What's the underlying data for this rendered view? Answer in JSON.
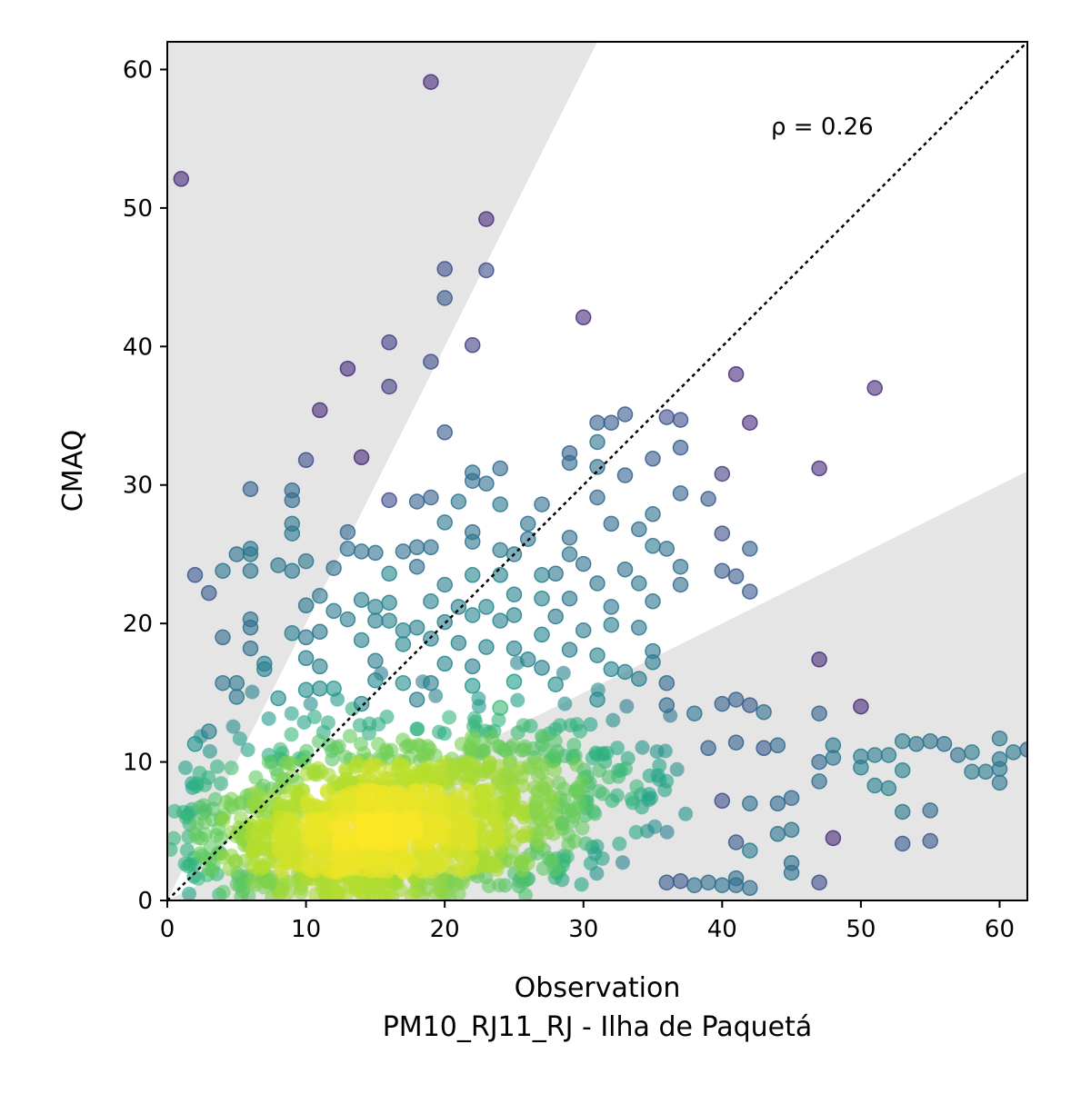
{
  "chart_data": {
    "type": "scatter",
    "xlabel": "Observation",
    "xlabel_line2": "PM10_RJ11_RJ - Ilha de Paquetá",
    "ylabel": "CMAQ",
    "xlim": [
      0,
      62
    ],
    "ylim": [
      0,
      62
    ],
    "xticks": [
      0,
      10,
      20,
      30,
      40,
      50,
      60
    ],
    "yticks": [
      0,
      10,
      20,
      30,
      40,
      50,
      60
    ],
    "grid": false,
    "annotation": "ρ = 0.26",
    "reference_line": "1:1",
    "shaded_band_slopes": [
      0.5,
      2
    ],
    "colormap": "viridis",
    "alpha": 0.6,
    "points": [
      [
        19,
        59.1
      ],
      [
        1,
        52.1
      ],
      [
        23,
        49.2
      ],
      [
        20,
        45.6
      ],
      [
        23,
        45.5
      ],
      [
        20,
        43.5
      ],
      [
        30,
        42.1
      ],
      [
        22,
        40.1
      ],
      [
        16,
        40.3
      ],
      [
        19,
        38.9
      ],
      [
        13,
        38.4
      ],
      [
        41,
        38.0
      ],
      [
        16,
        37.1
      ],
      [
        51,
        37.0
      ],
      [
        11,
        35.4
      ],
      [
        33,
        35.1
      ],
      [
        36,
        34.9
      ],
      [
        37,
        34.7
      ],
      [
        31,
        34.5
      ],
      [
        42,
        34.5
      ],
      [
        32,
        34.5
      ],
      [
        31,
        33.1
      ],
      [
        20,
        33.8
      ],
      [
        29,
        32.3
      ],
      [
        37,
        32.7
      ],
      [
        29,
        31.6
      ],
      [
        14,
        32.0
      ],
      [
        10,
        31.8
      ],
      [
        35,
        31.9
      ],
      [
        24,
        31.2
      ],
      [
        31,
        31.3
      ],
      [
        33,
        30.7
      ],
      [
        47,
        31.2
      ],
      [
        22,
        30.9
      ],
      [
        40,
        30.8
      ],
      [
        22,
        30.3
      ],
      [
        23,
        30.1
      ],
      [
        6,
        29.7
      ],
      [
        9,
        29.6
      ],
      [
        9,
        28.9
      ],
      [
        16,
        28.9
      ],
      [
        18,
        28.8
      ],
      [
        19,
        29.1
      ],
      [
        21,
        28.8
      ],
      [
        24,
        28.6
      ],
      [
        31,
        29.1
      ],
      [
        37,
        29.4
      ],
      [
        39,
        29.0
      ],
      [
        27,
        28.6
      ],
      [
        9,
        27.2
      ],
      [
        9,
        26.5
      ],
      [
        13,
        26.6
      ],
      [
        20,
        27.3
      ],
      [
        22,
        26.6
      ],
      [
        26,
        27.2
      ],
      [
        29,
        26.2
      ],
      [
        32,
        27.2
      ],
      [
        34,
        26.8
      ],
      [
        35,
        27.9
      ],
      [
        40,
        26.5
      ],
      [
        6,
        25.4
      ],
      [
        6,
        25.0
      ],
      [
        5,
        25.0
      ],
      [
        13,
        25.4
      ],
      [
        14,
        25.2
      ],
      [
        15,
        25.1
      ],
      [
        17,
        25.2
      ],
      [
        18,
        25.5
      ],
      [
        19,
        25.5
      ],
      [
        22,
        25.9
      ],
      [
        24,
        25.3
      ],
      [
        25,
        25.0
      ],
      [
        26,
        26.1
      ],
      [
        29,
        25.0
      ],
      [
        30,
        24.3
      ],
      [
        35,
        25.6
      ],
      [
        36,
        25.4
      ],
      [
        42,
        25.4
      ],
      [
        10,
        24.5
      ],
      [
        8,
        24.2
      ],
      [
        2,
        23.5
      ],
      [
        4,
        23.8
      ],
      [
        6,
        23.8
      ],
      [
        9,
        23.8
      ],
      [
        12,
        24.0
      ],
      [
        16,
        23.6
      ],
      [
        18,
        24.1
      ],
      [
        20,
        22.8
      ],
      [
        22,
        23.5
      ],
      [
        24,
        23.5
      ],
      [
        27,
        23.5
      ],
      [
        28,
        23.6
      ],
      [
        31,
        22.9
      ],
      [
        33,
        23.9
      ],
      [
        34,
        22.9
      ],
      [
        37,
        24.1
      ],
      [
        37,
        22.8
      ],
      [
        40,
        23.8
      ],
      [
        41,
        23.4
      ],
      [
        42,
        22.3
      ],
      [
        3,
        22.2
      ],
      [
        10,
        21.3
      ],
      [
        11,
        22.0
      ],
      [
        14,
        21.7
      ],
      [
        15,
        21.2
      ],
      [
        16,
        21.5
      ],
      [
        19,
        21.6
      ],
      [
        21,
        21.2
      ],
      [
        23,
        21.2
      ],
      [
        25,
        22.1
      ],
      [
        27,
        21.8
      ],
      [
        29,
        21.8
      ],
      [
        32,
        21.2
      ],
      [
        35,
        21.6
      ],
      [
        12,
        20.9
      ],
      [
        13,
        20.3
      ],
      [
        6,
        20.3
      ],
      [
        6,
        19.7
      ],
      [
        4,
        19.0
      ],
      [
        9,
        19.3
      ],
      [
        10,
        19.0
      ],
      [
        11,
        19.4
      ],
      [
        15,
        20.2
      ],
      [
        16,
        20.2
      ],
      [
        17,
        19.5
      ],
      [
        18,
        19.7
      ],
      [
        20,
        20.1
      ],
      [
        22,
        20.6
      ],
      [
        24,
        20.2
      ],
      [
        25,
        20.6
      ],
      [
        28,
        20.5
      ],
      [
        30,
        19.5
      ],
      [
        32,
        19.9
      ],
      [
        34,
        19.7
      ],
      [
        27,
        19.2
      ],
      [
        6,
        18.2
      ],
      [
        10,
        17.5
      ],
      [
        14,
        18.8
      ],
      [
        17,
        18.5
      ],
      [
        19,
        18.9
      ],
      [
        21,
        18.6
      ],
      [
        23,
        18.3
      ],
      [
        25,
        18.2
      ],
      [
        29,
        18.1
      ],
      [
        31,
        17.7
      ],
      [
        35,
        18.0
      ],
      [
        7,
        17.1
      ],
      [
        7,
        16.7
      ],
      [
        11,
        16.9
      ],
      [
        15,
        17.3
      ],
      [
        20,
        17.1
      ],
      [
        22,
        16.9
      ],
      [
        26,
        17.4
      ],
      [
        27,
        16.8
      ],
      [
        32,
        16.7
      ],
      [
        33,
        16.5
      ],
      [
        35,
        17.2
      ],
      [
        47,
        17.4
      ],
      [
        4,
        15.7
      ],
      [
        5,
        15.7
      ],
      [
        10,
        15.2
      ],
      [
        11,
        15.3
      ],
      [
        12,
        15.3
      ],
      [
        15,
        15.9
      ],
      [
        17,
        15.7
      ],
      [
        19,
        15.7
      ],
      [
        22,
        15.5
      ],
      [
        25,
        15.8
      ],
      [
        28,
        15.6
      ],
      [
        34,
        16.0
      ],
      [
        36,
        15.7
      ],
      [
        5,
        14.7
      ],
      [
        8,
        14.6
      ],
      [
        14,
        14.2
      ],
      [
        18,
        14.5
      ],
      [
        24,
        13.9
      ],
      [
        31,
        14.5
      ],
      [
        36,
        14.1
      ],
      [
        38,
        13.5
      ],
      [
        40,
        14.2
      ],
      [
        41,
        14.5
      ],
      [
        42,
        14.1
      ],
      [
        43,
        13.6
      ],
      [
        47,
        13.5
      ],
      [
        50,
        14.0
      ],
      [
        3,
        12.2
      ],
      [
        2,
        11.3
      ],
      [
        39,
        11.0
      ],
      [
        41,
        11.4
      ],
      [
        43,
        11.0
      ],
      [
        44,
        11.2
      ],
      [
        48,
        11.2
      ],
      [
        51,
        10.5
      ],
      [
        52,
        10.5
      ],
      [
        53,
        11.5
      ],
      [
        54,
        11.3
      ],
      [
        55,
        11.5
      ],
      [
        56,
        11.3
      ],
      [
        57,
        10.5
      ],
      [
        58,
        10.7
      ],
      [
        60,
        11.7
      ],
      [
        61,
        10.7
      ],
      [
        62,
        10.9
      ],
      [
        47,
        10.0
      ],
      [
        48,
        10.3
      ],
      [
        50,
        9.6
      ],
      [
        50,
        10.4
      ],
      [
        53,
        9.4
      ],
      [
        58,
        9.3
      ],
      [
        59,
        9.3
      ],
      [
        60,
        10.2
      ],
      [
        60,
        9.5
      ],
      [
        51,
        8.3
      ],
      [
        52,
        8.1
      ],
      [
        60,
        8.5
      ],
      [
        47,
        8.6
      ],
      [
        45,
        7.4
      ],
      [
        44,
        7.0
      ],
      [
        42,
        7.0
      ],
      [
        40,
        7.2
      ],
      [
        48,
        4.5
      ],
      [
        53,
        6.4
      ],
      [
        55,
        6.5
      ],
      [
        53,
        4.1
      ],
      [
        55,
        4.3
      ],
      [
        44,
        4.8
      ],
      [
        45,
        5.1
      ],
      [
        42,
        3.6
      ],
      [
        41,
        4.2
      ],
      [
        45,
        2.7
      ],
      [
        45,
        2.0
      ],
      [
        41,
        1.6
      ],
      [
        40,
        1.1
      ],
      [
        41,
        1.1
      ],
      [
        42,
        0.9
      ],
      [
        38,
        1.1
      ],
      [
        39,
        1.3
      ],
      [
        47,
        1.3
      ],
      [
        37,
        1.4
      ],
      [
        36,
        1.3
      ]
    ]
  }
}
